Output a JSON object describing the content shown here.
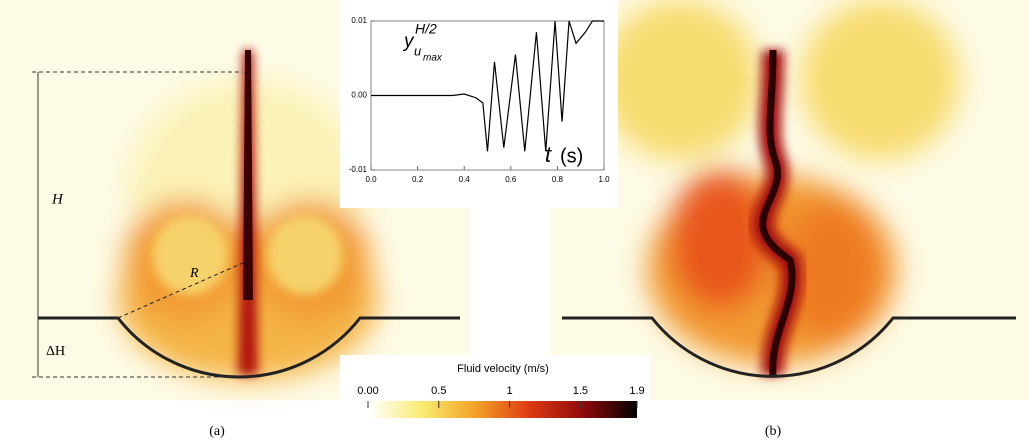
{
  "figure": {
    "panels": [
      {
        "label": "(a)"
      },
      {
        "label": "(b)"
      }
    ],
    "annotations": {
      "height": "H",
      "radius": "R",
      "depth": "ΔH"
    }
  },
  "colorbar": {
    "title": "Fluid velocity (m/s)",
    "lim": [
      0,
      1.9
    ],
    "ticks": [
      {
        "value": 0,
        "label": "0.00"
      },
      0.5,
      1,
      1.5,
      1.9
    ]
  },
  "chart_data": {
    "type": "line",
    "ylabel": {
      "base": "y",
      "sup": "H/2",
      "sub": "u",
      "subsub": "max"
    },
    "xlabel": {
      "var": "t",
      "unit": "(s)"
    },
    "x": [
      0,
      0.1,
      0.2,
      0.3,
      0.35,
      0.4,
      0.45,
      0.48,
      0.5,
      0.53,
      0.57,
      0.62,
      0.66,
      0.71,
      0.75,
      0.79,
      0.82,
      0.85,
      0.88,
      0.92,
      0.95,
      1.0
    ],
    "series": [
      {
        "color": "#000000",
        "values": [
          0,
          0,
          0,
          0,
          0,
          0.0002,
          -0.0003,
          -0.001,
          -0.0075,
          0.0045,
          -0.007,
          0.0055,
          -0.0075,
          0.0085,
          -0.0075,
          0.01,
          -0.0035,
          0.01,
          0.007,
          0.0085,
          0.01,
          0.01
        ]
      }
    ],
    "xlim": [
      0,
      1
    ],
    "ylim": [
      -0.01,
      0.01
    ],
    "xticks": [
      {
        "value": 0,
        "label": "0.0"
      },
      0.2,
      0.4,
      0.6,
      0.8,
      {
        "value": 1,
        "label": "1.0"
      }
    ],
    "yticks": [
      -0.01,
      {
        "value": 0,
        "label": "0.00"
      },
      0.01
    ]
  }
}
